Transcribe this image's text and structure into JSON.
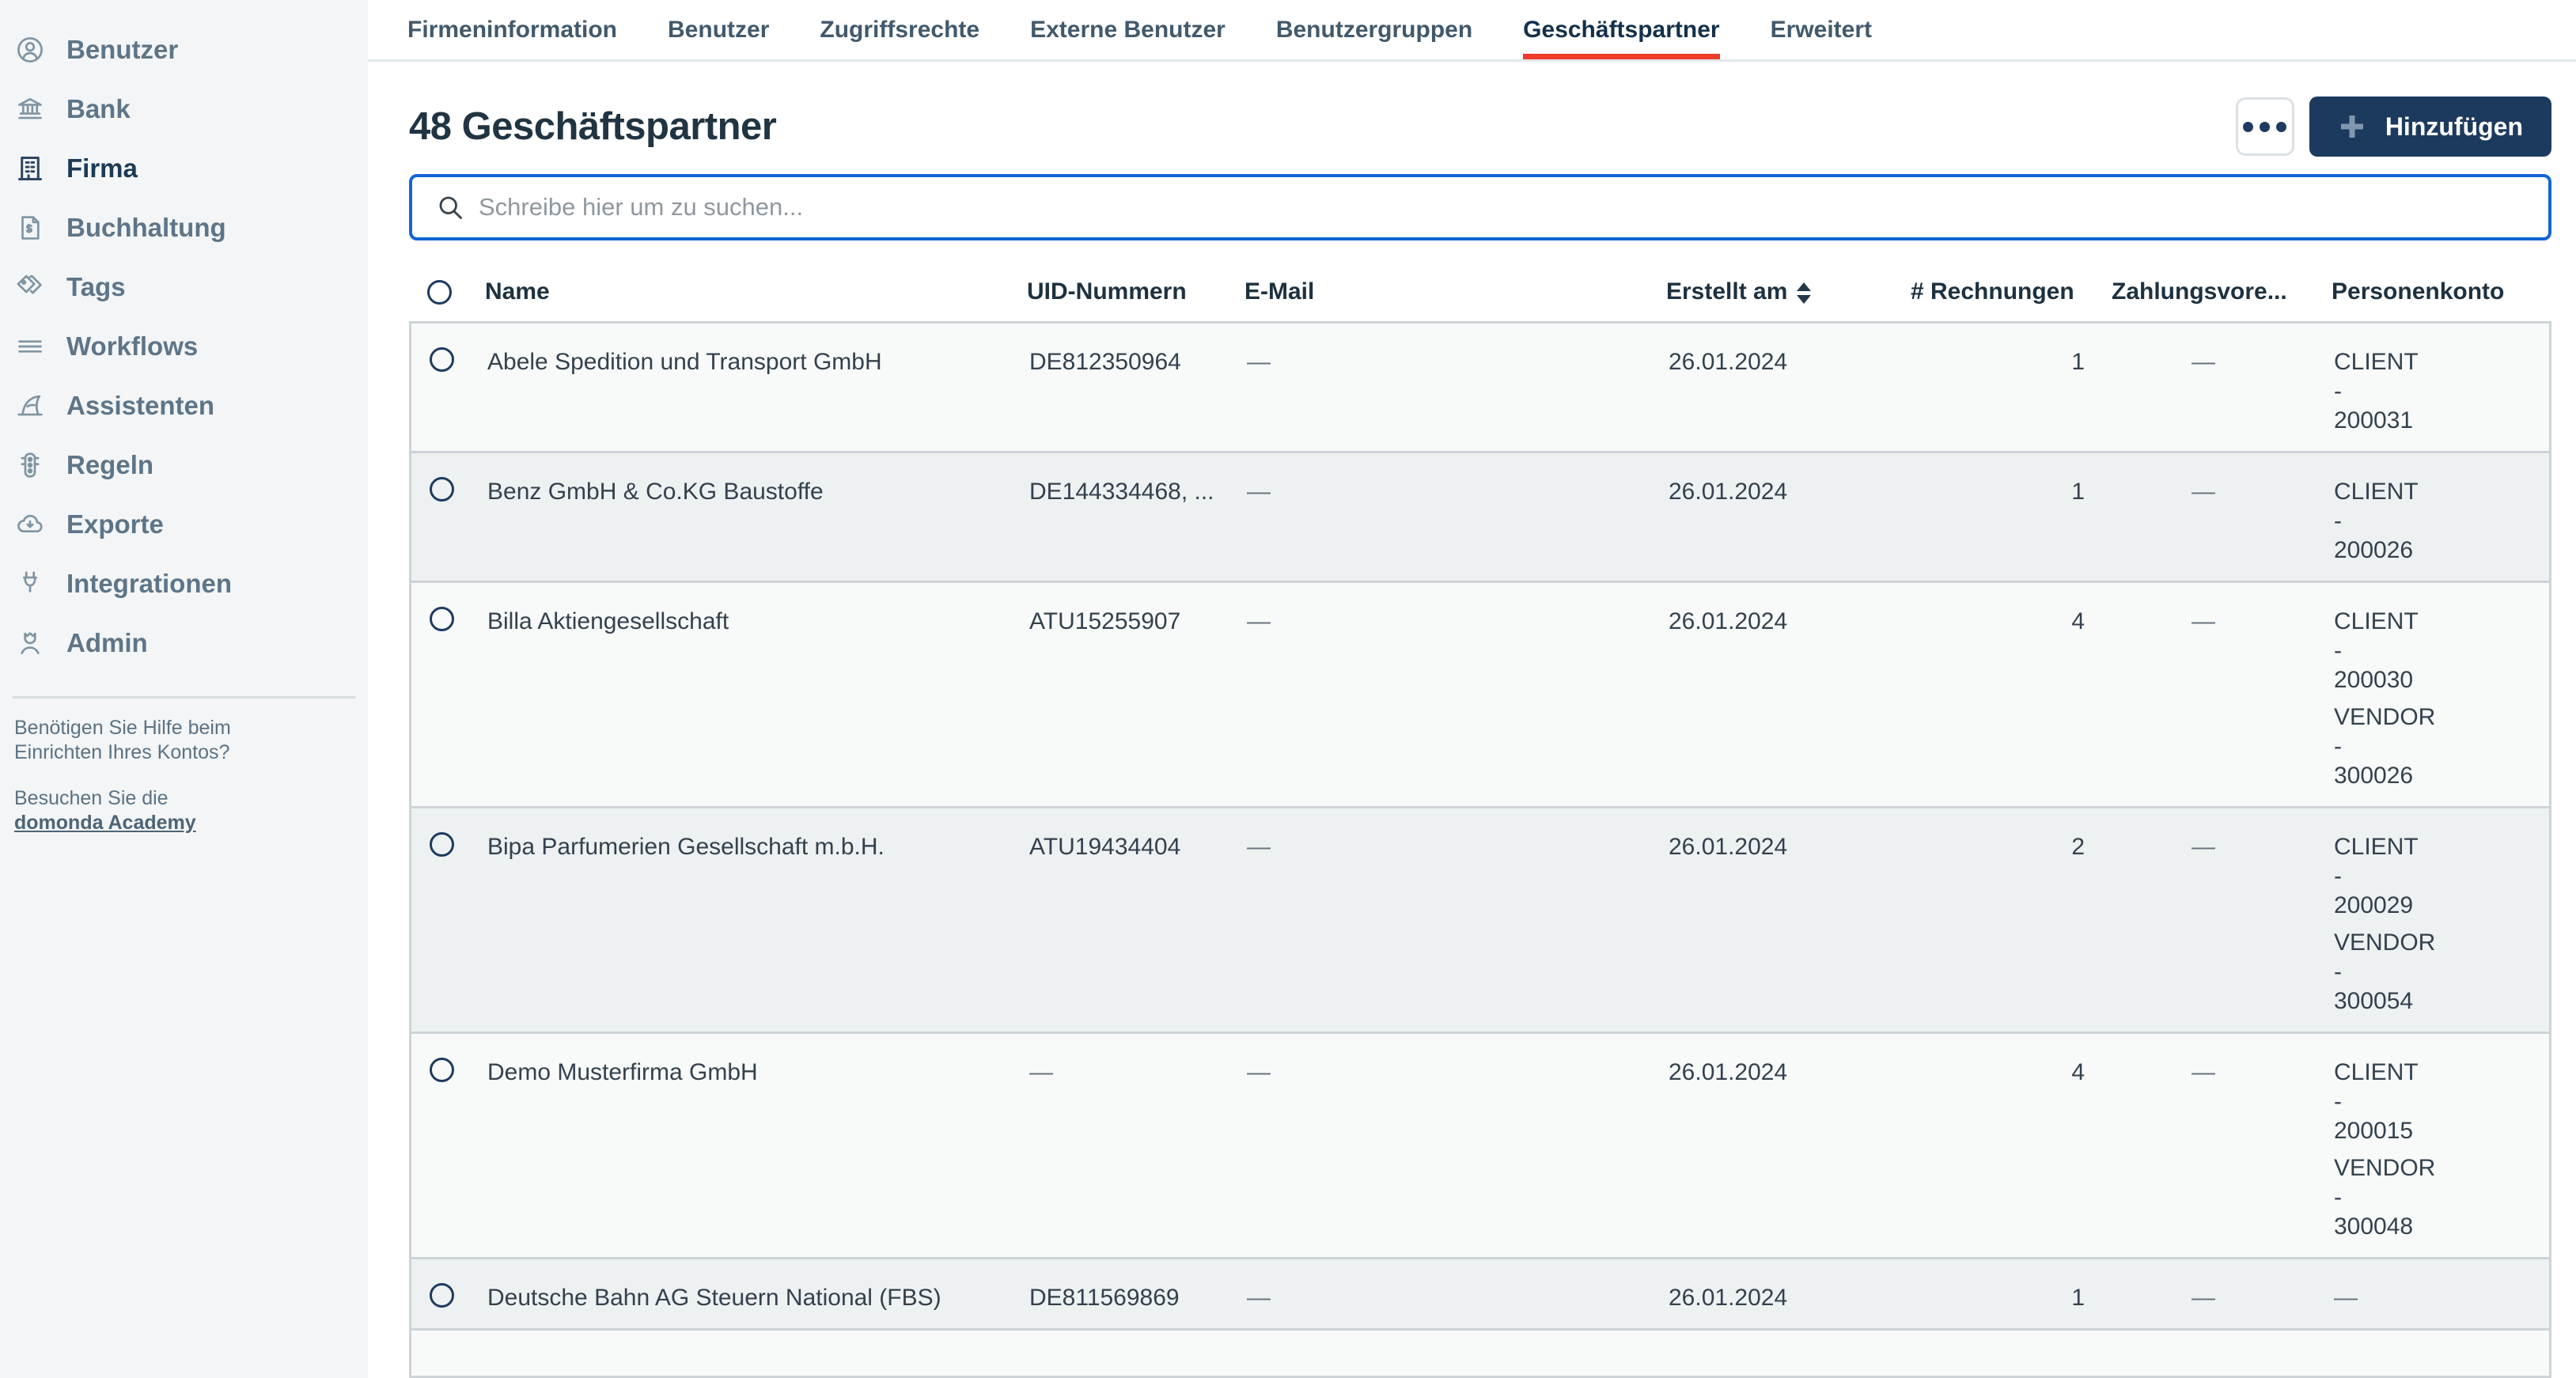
{
  "colors": {
    "accent_red": "#ee3b2b",
    "primary_navy": "#1c3a5e",
    "focus_blue": "#1465d6"
  },
  "sidebar": {
    "items": [
      {
        "icon": "user-icon",
        "label": "Benutzer",
        "active": false
      },
      {
        "icon": "bank-icon",
        "label": "Bank",
        "active": false
      },
      {
        "icon": "building-icon",
        "label": "Firma",
        "active": true
      },
      {
        "icon": "invoice-icon",
        "label": "Buchhaltung",
        "active": false
      },
      {
        "icon": "tags-icon",
        "label": "Tags",
        "active": false
      },
      {
        "icon": "list-icon",
        "label": "Workflows",
        "active": false
      },
      {
        "icon": "shark-icon",
        "label": "Assistenten",
        "active": false
      },
      {
        "icon": "traffic-light-icon",
        "label": "Regeln",
        "active": false
      },
      {
        "icon": "cloud-download-icon",
        "label": "Exporte",
        "active": false
      },
      {
        "icon": "plug-icon",
        "label": "Integrationen",
        "active": false
      },
      {
        "icon": "admin-icon",
        "label": "Admin",
        "active": false
      }
    ],
    "help": {
      "question": "Benötigen Sie Hilfe beim Einrichten Ihres Kontos?",
      "visit_prefix": "Besuchen Sie die",
      "link_label": "domonda Academy"
    }
  },
  "tabs": [
    {
      "label": "Firmeninformation",
      "active": false
    },
    {
      "label": "Benutzer",
      "active": false
    },
    {
      "label": "Zugriffsrechte",
      "active": false
    },
    {
      "label": "Externe Benutzer",
      "active": false
    },
    {
      "label": "Benutzergruppen",
      "active": false
    },
    {
      "label": "Geschäftspartner",
      "active": true
    },
    {
      "label": "Erweitert",
      "active": false
    }
  ],
  "page": {
    "title": "48 Geschäftspartner",
    "add_label": "Hinzufügen"
  },
  "search": {
    "placeholder": "Schreibe hier um zu suchen..."
  },
  "table": {
    "columns": {
      "name": "Name",
      "uid": "UID-Nummern",
      "email": "E-Mail",
      "created": "Erstellt am",
      "invoices": "# Rechnungen",
      "payment": "Zahlungsvore...",
      "account": "Personenkonto"
    },
    "rows": [
      {
        "name": "Abele Spedition und Transport GmbH",
        "uid": "DE812350964",
        "email": "—",
        "created": "26.01.2024",
        "invoices": "1",
        "payment": "—",
        "accounts": [
          "CLIENT - 200031"
        ]
      },
      {
        "name": "Benz GmbH & Co.KG Baustoffe",
        "uid": "DE144334468, ...",
        "email": "—",
        "created": "26.01.2024",
        "invoices": "1",
        "payment": "—",
        "accounts": [
          "CLIENT - 200026"
        ]
      },
      {
        "name": "Billa Aktiengesellschaft",
        "uid": "ATU15255907",
        "email": "—",
        "created": "26.01.2024",
        "invoices": "4",
        "payment": "—",
        "accounts": [
          "CLIENT - 200030",
          "VENDOR - 300026"
        ]
      },
      {
        "name": "Bipa Parfumerien Gesellschaft m.b.H.",
        "uid": "ATU19434404",
        "email": "—",
        "created": "26.01.2024",
        "invoices": "2",
        "payment": "—",
        "accounts": [
          "CLIENT - 200029",
          "VENDOR - 300054"
        ]
      },
      {
        "name": "Demo Musterfirma GmbH",
        "uid": "—",
        "email": "—",
        "created": "26.01.2024",
        "invoices": "4",
        "payment": "—",
        "accounts": [
          "CLIENT - 200015",
          "VENDOR - 300048"
        ]
      },
      {
        "name": "Deutsche Bahn AG Steuern National (FBS)",
        "uid": "DE811569869",
        "email": "—",
        "created": "26.01.2024",
        "invoices": "1",
        "payment": "—",
        "accounts": [
          "—"
        ]
      }
    ]
  }
}
